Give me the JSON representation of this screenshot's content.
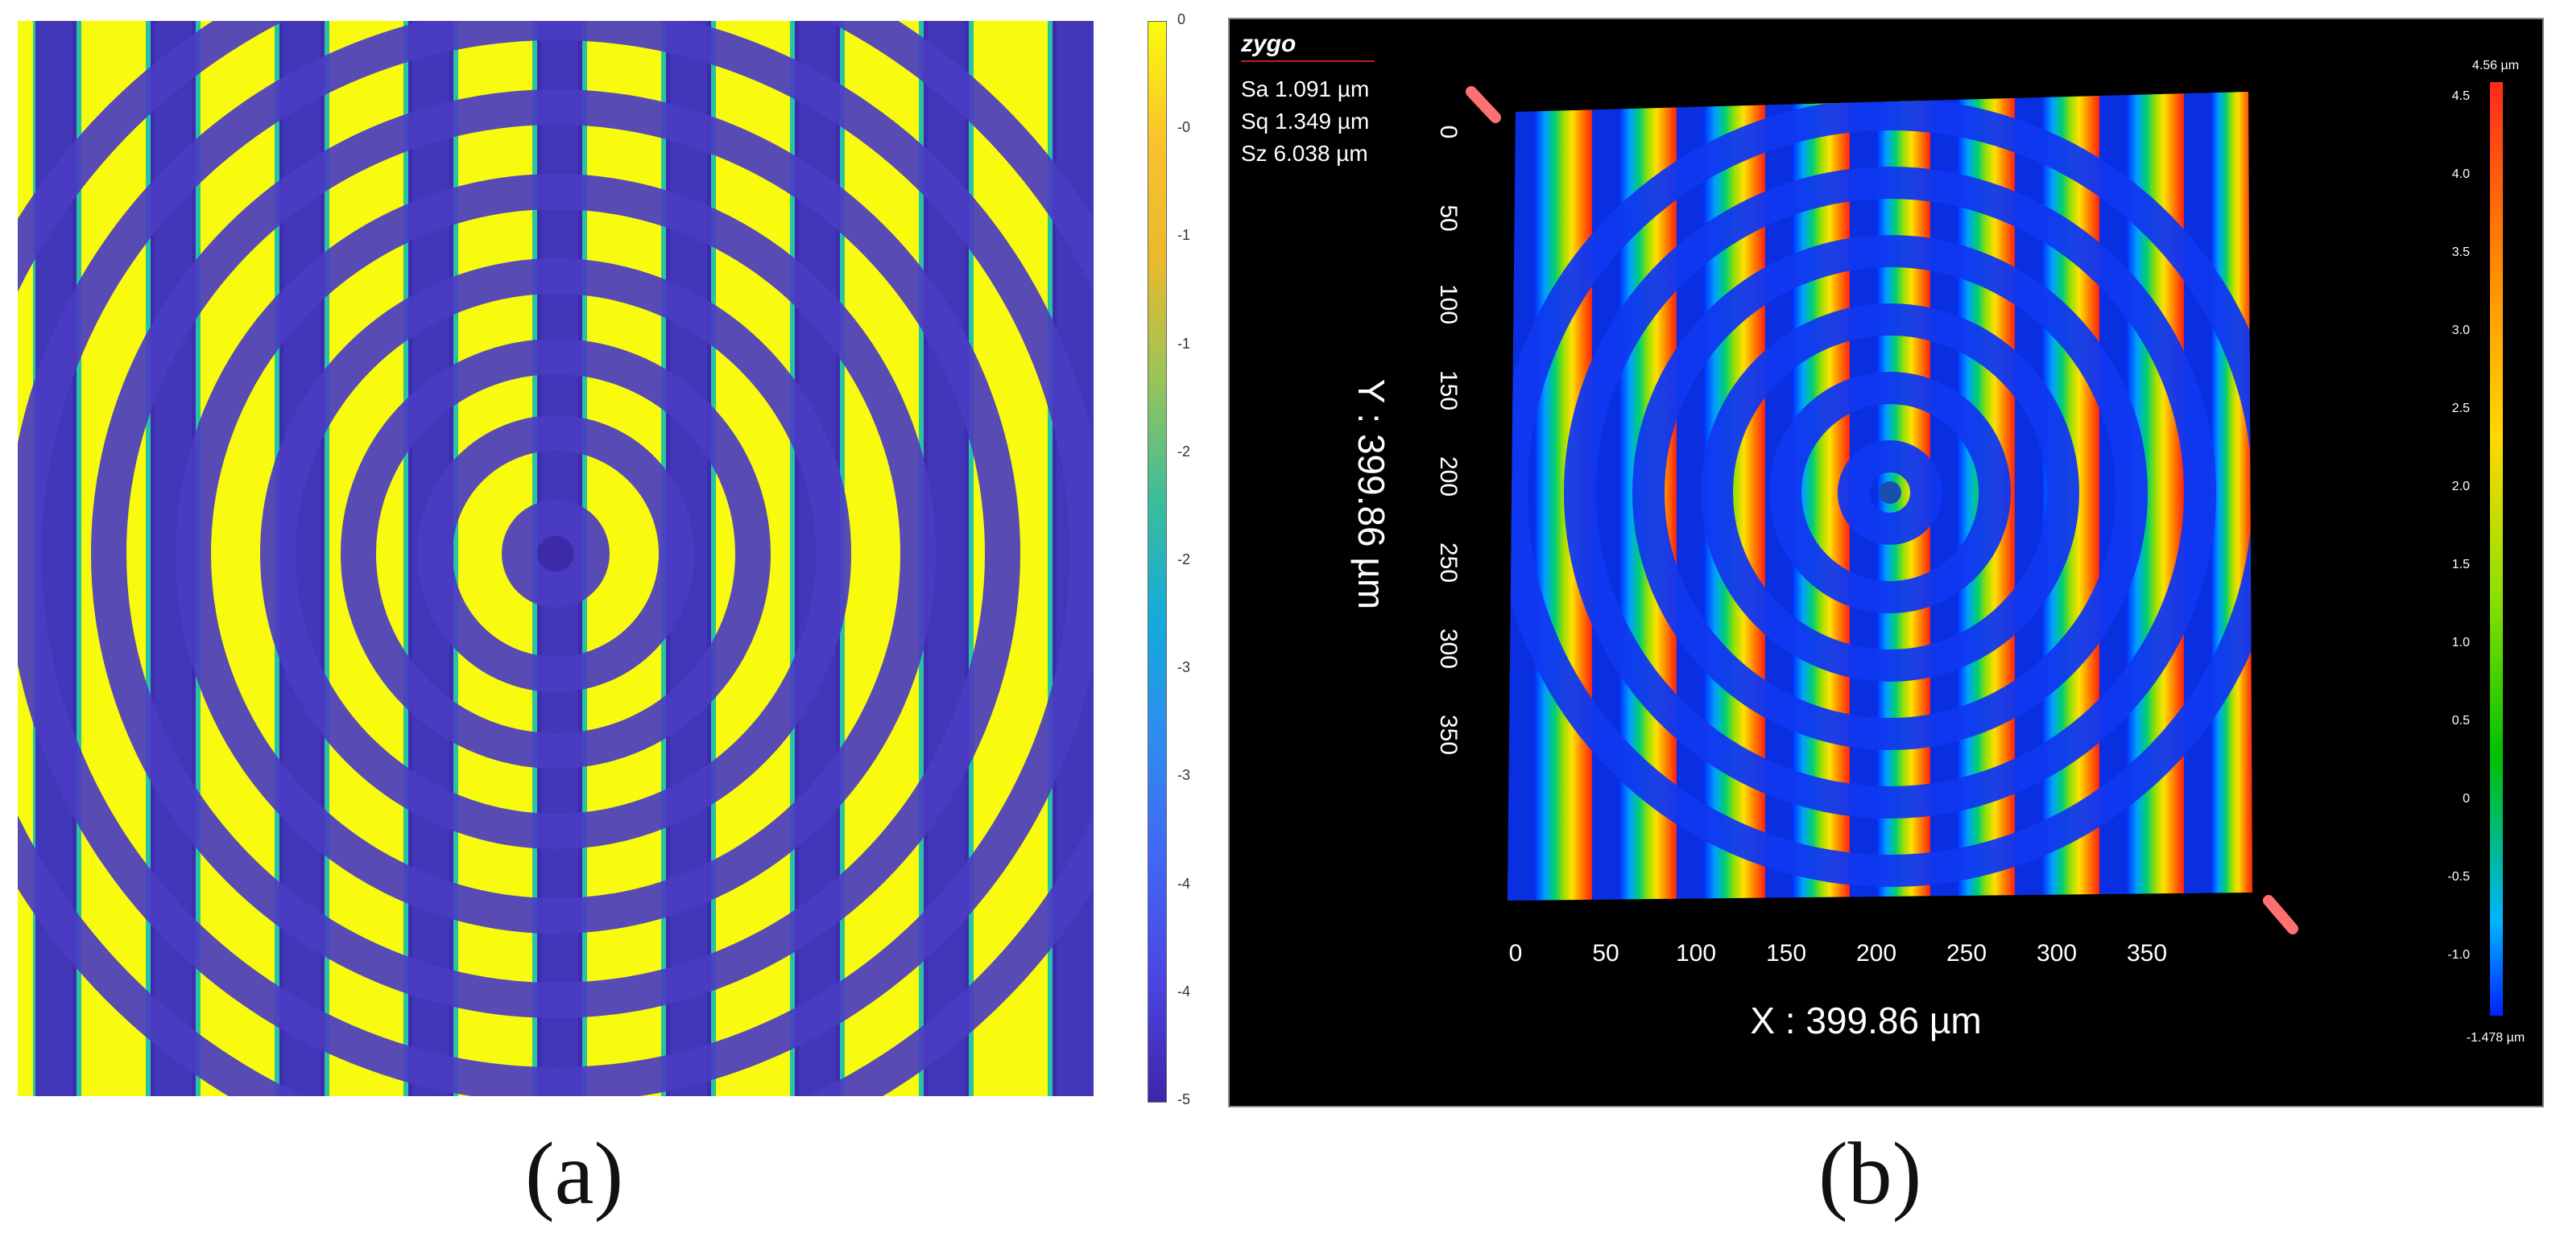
{
  "panel_a": {
    "caption": "(a)",
    "colorbar": {
      "tick_labels": [
        "0",
        "-0",
        "-1",
        "-1",
        "-2",
        "-2",
        "-3",
        "-3",
        "-4",
        "-4",
        "-5"
      ],
      "colormap": "parula",
      "colors": [
        "#f9fb0e",
        "#fbc12e",
        "#e9ba2c",
        "#97c45a",
        "#3cbc9c",
        "#14aadc",
        "#2f8bf0",
        "#4266f5",
        "#4b45e2",
        "#3e26a8"
      ]
    }
  },
  "panel_b": {
    "caption": "(b)",
    "logo": "zygo",
    "stats": [
      {
        "label": "Sa",
        "value": "1.091 µm"
      },
      {
        "label": "Sq",
        "value": "1.349 µm"
      },
      {
        "label": "Sz",
        "value": "6.038 µm"
      }
    ],
    "x_axis": {
      "label": "X : 399.86 µm",
      "ticks": [
        "0",
        "50",
        "100",
        "150",
        "200",
        "250",
        "300",
        "350"
      ]
    },
    "y_axis": {
      "label": "Y : 399.86 µm",
      "ticks": [
        "0",
        "50",
        "100",
        "150",
        "200",
        "250",
        "300",
        "350"
      ]
    },
    "colorbar": {
      "max_label": "4.56 µm",
      "min_label": "-1.478 µm",
      "tick_labels": [
        "4.5",
        "4.0",
        "3.5",
        "3.0",
        "2.5",
        "2.0",
        "1.5",
        "1.0",
        "0.5",
        "0",
        "-0.5",
        "-1.0"
      ],
      "colors": [
        "#ff2a1a",
        "#ff8c00",
        "#ffd800",
        "#8ee000",
        "#00c000",
        "#00b4ff",
        "#0020ff"
      ]
    }
  }
}
